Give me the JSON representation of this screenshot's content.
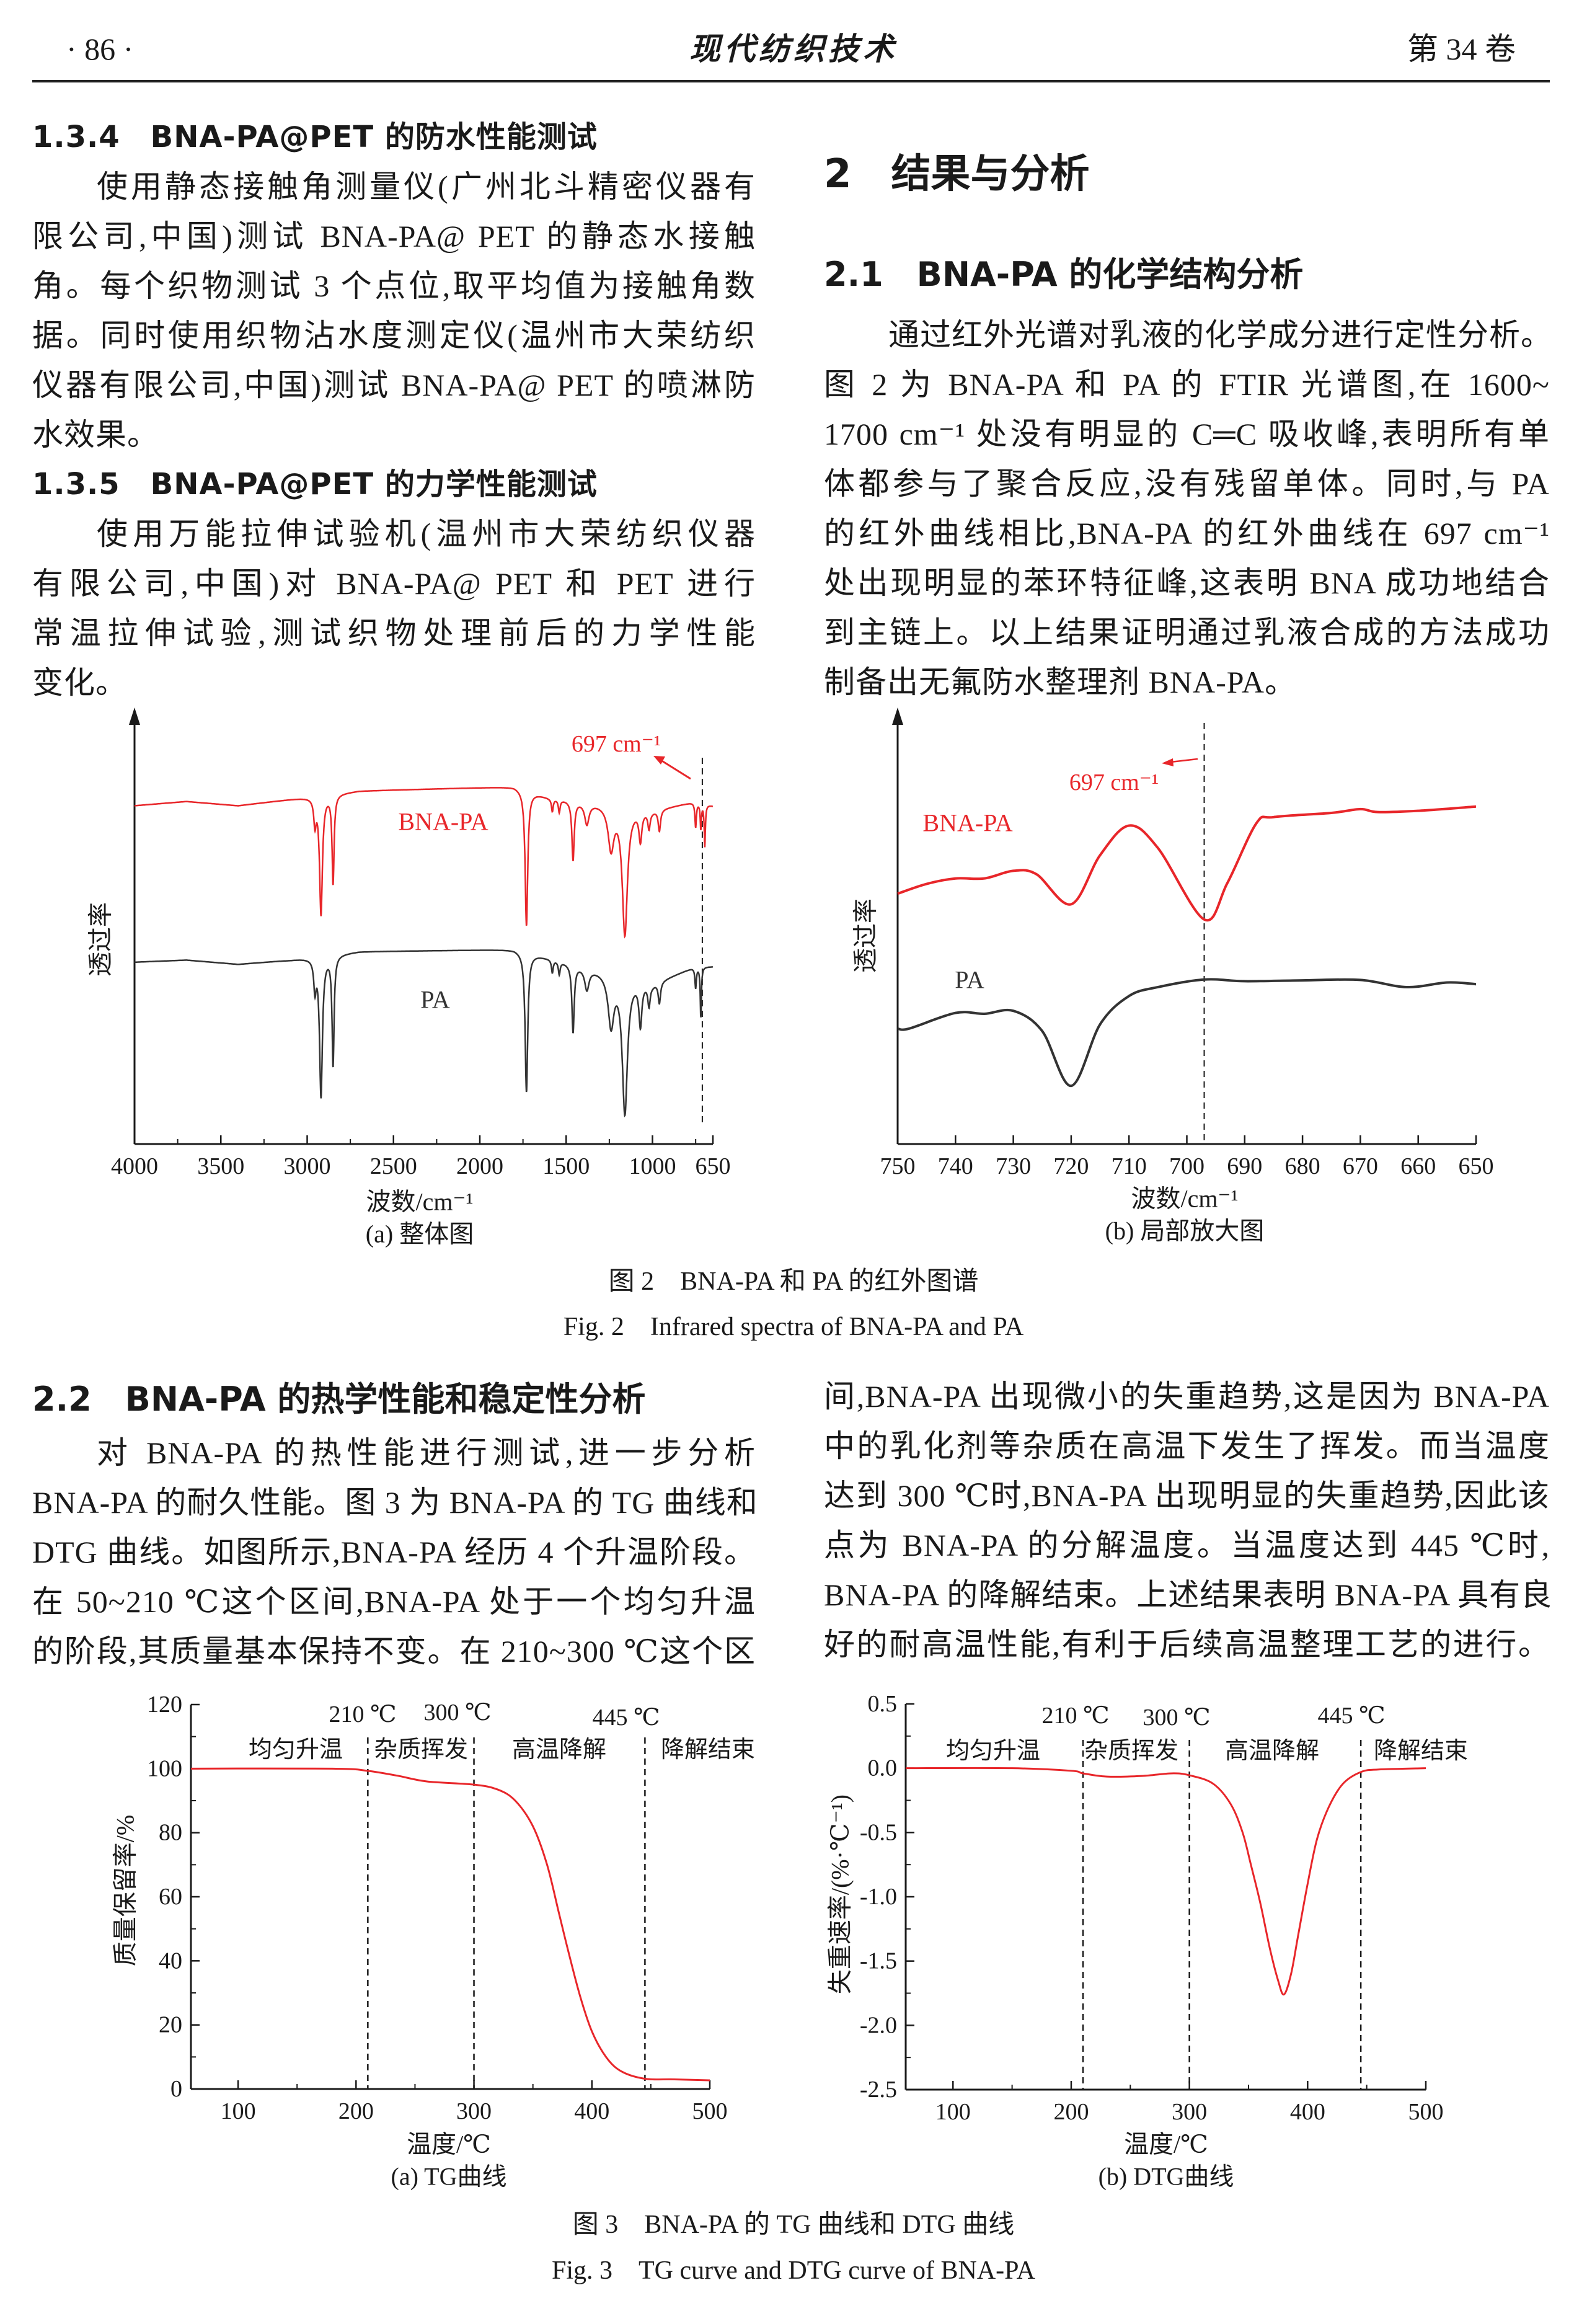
{
  "header": {
    "page_number": "· 86 ·",
    "journal": "现代纺织技术",
    "volume": "第 34 卷"
  },
  "left_top": {
    "h1": "1.3.4　BNA-PA@PET 的防水性能测试",
    "p1": [
      "使用静态接触角测量仪(广州北斗精密仪器有",
      "限公司,中国)测试 BNA-PA@ PET 的静态水接触",
      "角。每个织物测试 3 个点位,取平均值为接触角数",
      "据。同时使用织物沾水度测定仪(温州市大荣纺织",
      "仪器有限公司,中国)测试 BNA-PA@ PET 的喷淋防",
      "水效果。"
    ],
    "h2": "1.3.5　BNA-PA@PET 的力学性能测试",
    "p2": [
      "使用万能拉伸试验机(温州市大荣纺织仪器",
      "有限公司,中国)对 BNA-PA@ PET 和 PET 进行",
      "常温拉伸试验,测试织物处理前后的力学性能",
      "变化。"
    ]
  },
  "right_top": {
    "section": "2　结果与分析",
    "subsection": "2.1　BNA-PA 的化学结构分析",
    "p": [
      "通过红外光谱对乳液的化学成分进行定性分析。",
      "图 2 为 BNA-PA 和 PA 的 FTIR 光谱图,在 1600~",
      "1700 cm⁻¹ 处没有明显的 C═C 吸收峰,表明所有单",
      "体都参与了聚合反应,没有残留单体。同时,与 PA",
      "的红外曲线相比,BNA-PA 的红外曲线在 697 cm⁻¹",
      "处出现明显的苯环特征峰,这表明 BNA 成功地结合",
      "到主链上。以上结果证明通过乳液合成的方法成功",
      "制备出无氟防水整理剂 BNA-PA。"
    ]
  },
  "figure2": {
    "caption_cn": "图 2　BNA-PA 和 PA 的红外图谱",
    "caption_en": "Fig. 2　Infrared spectra of BNA-PA and PA"
  },
  "section22": {
    "heading": "2.2　BNA-PA 的热学性能和稳定性分析",
    "left": [
      "对 BNA-PA 的热性能进行测试,进一步分析",
      "BNA-PA 的耐久性能。图 3 为 BNA-PA 的 TG 曲线和",
      "DTG 曲线。如图所示,BNA-PA 经历 4 个升温阶段。",
      "在 50~210 ℃这个区间,BNA-PA 处于一个均匀升温",
      "的阶段,其质量基本保持不变。在 210~300 ℃这个区"
    ],
    "right": [
      "间,BNA-PA 出现微小的失重趋势,这是因为 BNA-PA",
      "中的乳化剂等杂质在高温下发生了挥发。而当温度",
      "达到 300 ℃时,BNA-PA 出现明显的失重趋势,因此该",
      "点为 BNA-PA 的分解温度。当温度达到 445 ℃时,",
      "BNA-PA 的降解结束。上述结果表明 BNA-PA 具有良",
      "好的耐高温性能,有利于后续高温整理工艺的进行。"
    ]
  },
  "figure3": {
    "caption_cn": "图 3　BNA-PA 的 TG 曲线和 DTG 曲线",
    "caption_en": "Fig. 3　TG curve and DTG curve of BNA-PA"
  },
  "colors": {
    "bna_pa": "#e8262a",
    "pa": "#333333",
    "axis": "#1a1a1a"
  },
  "chart_data": [
    {
      "id": "ftir_full",
      "type": "line",
      "caption": "(a) 整体图",
      "xlabel": "波数/cm⁻¹",
      "ylabel": "透过率",
      "xlim": [
        4000,
        650
      ],
      "xticks": [
        4000,
        3500,
        3000,
        2500,
        2000,
        1500,
        1000,
        650
      ],
      "ylim": [
        0,
        1
      ],
      "annotation": {
        "text": "697 cm⁻¹",
        "x": 697
      },
      "series": [
        {
          "name": "BNA-PA",
          "color": "#e8262a",
          "baseline": [
            [
              4000,
              0.8
            ],
            [
              3700,
              0.81
            ],
            [
              3400,
              0.8
            ],
            [
              3100,
              0.815
            ],
            [
              2700,
              0.835
            ],
            [
              1800,
              0.845
            ],
            [
              1600,
              0.82
            ],
            [
              1000,
              0.79
            ],
            [
              750,
              0.81
            ],
            [
              650,
              0.8
            ]
          ],
          "peaks": [
            [
              2955,
              0.06,
              8
            ],
            [
              2920,
              0.28,
              10
            ],
            [
              2850,
              0.21,
              7
            ],
            [
              1730,
              0.32,
              9
            ],
            [
              1580,
              0.03,
              6
            ],
            [
              1540,
              0.03,
              6
            ],
            [
              1460,
              0.14,
              8
            ],
            [
              1380,
              0.05,
              15
            ],
            [
              1240,
              0.1,
              20
            ],
            [
              1160,
              0.3,
              18
            ],
            [
              1070,
              0.07,
              10
            ],
            [
              1020,
              0.04,
              8
            ],
            [
              960,
              0.05,
              8
            ],
            [
              750,
              0.06,
              5
            ],
            [
              720,
              0.06,
              4
            ],
            [
              697,
              0.1,
              4
            ]
          ]
        },
        {
          "name": "PA",
          "color": "#333333",
          "baseline": [
            [
              4000,
              0.43
            ],
            [
              3700,
              0.435
            ],
            [
              3400,
              0.425
            ],
            [
              3100,
              0.435
            ],
            [
              2700,
              0.455
            ],
            [
              1800,
              0.46
            ],
            [
              1600,
              0.44
            ],
            [
              1000,
              0.38
            ],
            [
              750,
              0.42
            ],
            [
              650,
              0.42
            ]
          ],
          "peaks": [
            [
              2955,
              0.07,
              8
            ],
            [
              2920,
              0.33,
              10
            ],
            [
              2850,
              0.26,
              7
            ],
            [
              1730,
              0.33,
              9
            ],
            [
              1580,
              0.03,
              6
            ],
            [
              1540,
              0.03,
              6
            ],
            [
              1460,
              0.16,
              8
            ],
            [
              1380,
              0.05,
              15
            ],
            [
              1240,
              0.12,
              20
            ],
            [
              1160,
              0.32,
              18
            ],
            [
              1070,
              0.1,
              10
            ],
            [
              1020,
              0.05,
              8
            ],
            [
              960,
              0.05,
              8
            ],
            [
              750,
              0.05,
              5
            ],
            [
              720,
              0.12,
              4
            ]
          ]
        }
      ]
    },
    {
      "id": "ftir_zoom",
      "type": "line",
      "caption": "(b) 局部放大图",
      "xlabel": "波数/cm⁻¹",
      "ylabel": "透过率",
      "xlim": [
        750,
        650
      ],
      "xticks": [
        750,
        740,
        730,
        720,
        710,
        700,
        690,
        680,
        670,
        660,
        650
      ],
      "ylim": [
        0,
        1
      ],
      "annotation": {
        "text": "697 cm⁻¹",
        "x": 697
      },
      "series": [
        {
          "name": "BNA-PA",
          "color": "#e8262a",
          "points": [
            [
              750,
              0.592
            ],
            [
              745,
              0.615
            ],
            [
              740,
              0.628
            ],
            [
              735,
              0.628
            ],
            [
              730,
              0.646
            ],
            [
              726,
              0.638
            ],
            [
              720,
              0.567
            ],
            [
              715,
              0.683
            ],
            [
              710,
              0.753
            ],
            [
              705,
              0.7
            ],
            [
              697,
              0.531
            ],
            [
              693,
              0.617
            ],
            [
              688,
              0.758
            ],
            [
              685,
              0.773
            ],
            [
              675,
              0.783
            ],
            [
              670,
              0.792
            ],
            [
              667,
              0.785
            ],
            [
              660,
              0.788
            ],
            [
              650,
              0.798
            ]
          ]
        },
        {
          "name": "PA",
          "color": "#333333",
          "points": [
            [
              750,
              0.273
            ],
            [
              748,
              0.273
            ],
            [
              740,
              0.31
            ],
            [
              735,
              0.308
            ],
            [
              730,
              0.315
            ],
            [
              725,
              0.267
            ],
            [
              720,
              0.1375
            ],
            [
              715,
              0.283
            ],
            [
              710,
              0.35
            ],
            [
              705,
              0.371
            ],
            [
              697,
              0.389
            ],
            [
              690,
              0.385
            ],
            [
              680,
              0.387
            ],
            [
              670,
              0.388
            ],
            [
              662,
              0.371
            ],
            [
              655,
              0.382
            ],
            [
              650,
              0.378
            ]
          ]
        }
      ]
    },
    {
      "id": "tg",
      "type": "line",
      "caption": "(a) TG曲线",
      "xlabel": "温度/℃",
      "ylabel": "质量保留率/%",
      "xlim": [
        60,
        500
      ],
      "xticks": [
        100,
        200,
        300,
        400,
        500
      ],
      "ylim": [
        0,
        120
      ],
      "yticks": [
        0,
        20,
        40,
        60,
        80,
        100,
        120
      ],
      "boundaries": [
        {
          "x": 210,
          "label": "210 ℃"
        },
        {
          "x": 300,
          "label": "300 ℃"
        },
        {
          "x": 445,
          "label": "445 ℃"
        }
      ],
      "stages": [
        "均匀升温",
        "杂质挥发",
        "高温降解",
        "降解结束"
      ],
      "series": [
        {
          "name": "BNA-PA",
          "color": "#e8262a",
          "points": [
            [
              60,
              100
            ],
            [
              180,
              100
            ],
            [
              210,
              99.3
            ],
            [
              235,
              97.8
            ],
            [
              260,
              96
            ],
            [
              300,
              95
            ],
            [
              320,
              93.5
            ],
            [
              335,
              90
            ],
            [
              350,
              82
            ],
            [
              362,
              70
            ],
            [
              372,
              55
            ],
            [
              380,
              43
            ],
            [
              390,
              29
            ],
            [
              400,
              18
            ],
            [
              412,
              10
            ],
            [
              425,
              5.5
            ],
            [
              445,
              3.2
            ],
            [
              470,
              3
            ],
            [
              500,
              2.7
            ]
          ]
        }
      ]
    },
    {
      "id": "dtg",
      "type": "line",
      "caption": "(b) DTG曲线",
      "xlabel": "温度/℃",
      "ylabel": "失重速率/(%·℃⁻¹)",
      "xlim": [
        60,
        500
      ],
      "xticks": [
        100,
        200,
        300,
        400,
        500
      ],
      "ylim": [
        -2.5,
        0.5
      ],
      "yticks": [
        0.5,
        0.0,
        -0.5,
        -1.0,
        -1.5,
        -2.0,
        -2.5
      ],
      "ytick_labels": [
        "0.5",
        "0.0",
        "-0.5",
        "-1.0",
        "-1.5",
        "-2.0",
        "-2.5"
      ],
      "boundaries": [
        {
          "x": 210,
          "label": "210 ℃"
        },
        {
          "x": 300,
          "label": "300 ℃"
        },
        {
          "x": 445,
          "label": "445 ℃"
        }
      ],
      "stages": [
        "均匀升温",
        "杂质挥发",
        "高温降解",
        "降解结束"
      ],
      "series": [
        {
          "name": "BNA-PA",
          "color": "#e8262a",
          "points": [
            [
              60,
              0
            ],
            [
              150,
              0
            ],
            [
              200,
              -0.02
            ],
            [
              210,
              -0.04
            ],
            [
              230,
              -0.065
            ],
            [
              260,
              -0.06
            ],
            [
              285,
              -0.04
            ],
            [
              300,
              -0.055
            ],
            [
              320,
              -0.12
            ],
            [
              335,
              -0.28
            ],
            [
              345,
              -0.5
            ],
            [
              352,
              -0.75
            ],
            [
              360,
              -1.05
            ],
            [
              368,
              -1.4
            ],
            [
              375,
              -1.65
            ],
            [
              380,
              -1.76
            ],
            [
              386,
              -1.6
            ],
            [
              392,
              -1.3
            ],
            [
              400,
              -0.9
            ],
            [
              408,
              -0.55
            ],
            [
              418,
              -0.3
            ],
            [
              430,
              -0.12
            ],
            [
              445,
              -0.03
            ],
            [
              460,
              -0.01
            ],
            [
              500,
              0
            ]
          ]
        }
      ]
    }
  ]
}
